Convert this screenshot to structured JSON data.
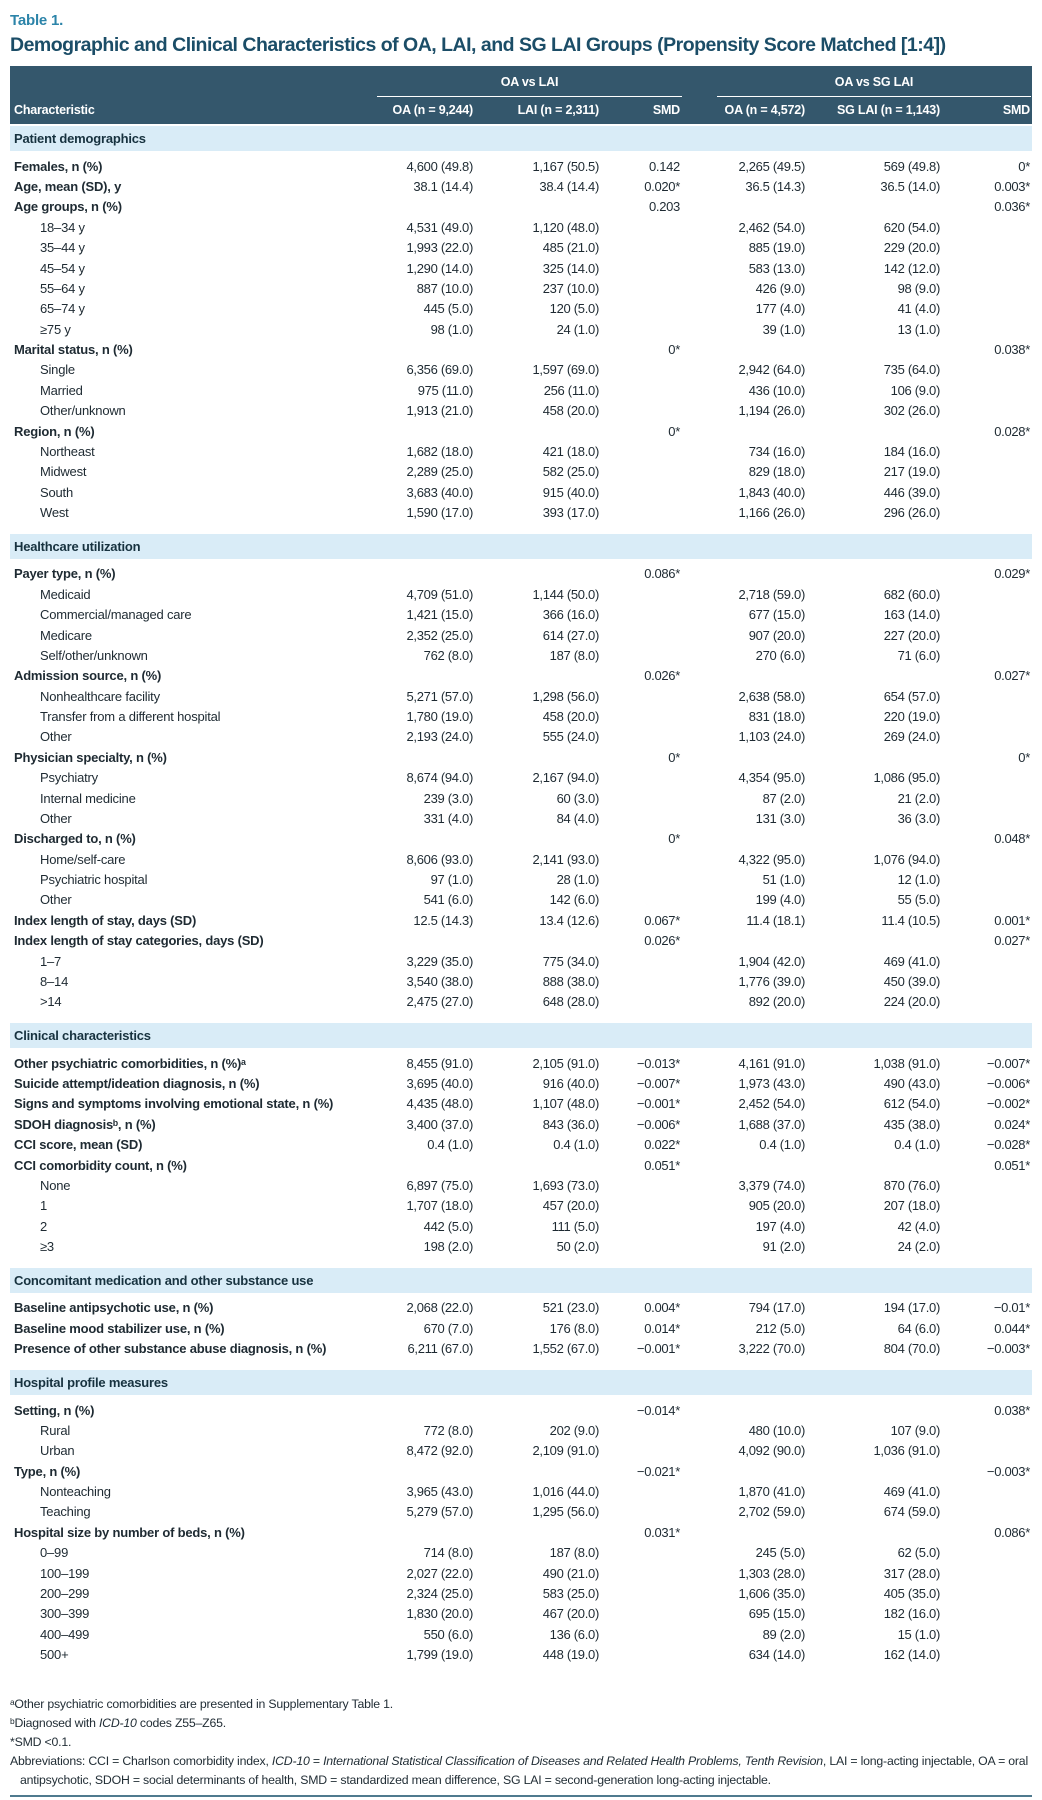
{
  "table_label": "Table 1.",
  "title": "Demographic and Clinical Characteristics of OA, LAI, and SG LAI Groups (Propensity Score Matched [1:4])",
  "colors": {
    "header_bg": "#34576C",
    "section_band_bg": "#D9ECF7",
    "table_label_teal": "#2C84A9",
    "title_text": "#1B4D67",
    "bottom_rule": "#4F7A8E"
  },
  "header": {
    "characteristic": "Characteristic",
    "groups": [
      "OA vs LAI",
      "OA vs SG LAI"
    ],
    "columns": [
      "OA (n = 9,244)",
      "LAI (n = 2,311)",
      "SMD",
      "OA (n = 4,572)",
      "SG LAI (n = 1,143)",
      "SMD"
    ]
  },
  "sections": [
    {
      "label": "Patient demographics",
      "rows": [
        {
          "label": "Females, n (%)",
          "indent": false,
          "values": [
            "4,600 (49.8)",
            "1,167 (50.5)",
            "0.142",
            "2,265 (49.5)",
            "569 (49.8)",
            "0*"
          ]
        },
        {
          "label": "Age, mean (SD), y",
          "indent": false,
          "values": [
            "38.1 (14.4)",
            "38.4 (14.4)",
            "0.020*",
            "36.5 (14.3)",
            "36.5 (14.0)",
            "0.003*"
          ]
        },
        {
          "label": "Age groups, n (%)",
          "indent": false,
          "values": [
            "",
            "",
            "0.203",
            "",
            "",
            "0.036*"
          ]
        },
        {
          "label": "18–34 y",
          "indent": true,
          "values": [
            "4,531 (49.0)",
            "1,120 (48.0)",
            "",
            "2,462 (54.0)",
            "620 (54.0)",
            ""
          ]
        },
        {
          "label": "35–44 y",
          "indent": true,
          "values": [
            "1,993 (22.0)",
            "485 (21.0)",
            "",
            "885 (19.0)",
            "229 (20.0)",
            ""
          ]
        },
        {
          "label": "45–54 y",
          "indent": true,
          "values": [
            "1,290 (14.0)",
            "325 (14.0)",
            "",
            "583 (13.0)",
            "142 (12.0)",
            ""
          ]
        },
        {
          "label": "55–64 y",
          "indent": true,
          "values": [
            "887 (10.0)",
            "237 (10.0)",
            "",
            "426 (9.0)",
            "98 (9.0)",
            ""
          ]
        },
        {
          "label": "65–74 y",
          "indent": true,
          "values": [
            "445 (5.0)",
            "120 (5.0)",
            "",
            "177 (4.0)",
            "41 (4.0)",
            ""
          ]
        },
        {
          "label": "≥75 y",
          "indent": true,
          "values": [
            "98 (1.0)",
            "24 (1.0)",
            "",
            "39 (1.0)",
            "13 (1.0)",
            ""
          ]
        },
        {
          "label": "Marital status, n (%)",
          "indent": false,
          "values": [
            "",
            "",
            "0*",
            "",
            "",
            "0.038*"
          ]
        },
        {
          "label": "Single",
          "indent": true,
          "values": [
            "6,356 (69.0)",
            "1,597 (69.0)",
            "",
            "2,942 (64.0)",
            "735 (64.0)",
            ""
          ]
        },
        {
          "label": "Married",
          "indent": true,
          "values": [
            "975 (11.0)",
            "256 (11.0)",
            "",
            "436 (10.0)",
            "106 (9.0)",
            ""
          ]
        },
        {
          "label": "Other/unknown",
          "indent": true,
          "values": [
            "1,913 (21.0)",
            "458 (20.0)",
            "",
            "1,194 (26.0)",
            "302 (26.0)",
            ""
          ]
        },
        {
          "label": "Region, n (%)",
          "indent": false,
          "values": [
            "",
            "",
            "0*",
            "",
            "",
            "0.028*"
          ]
        },
        {
          "label": "Northeast",
          "indent": true,
          "values": [
            "1,682 (18.0)",
            "421 (18.0)",
            "",
            "734 (16.0)",
            "184 (16.0)",
            ""
          ]
        },
        {
          "label": "Midwest",
          "indent": true,
          "values": [
            "2,289 (25.0)",
            "582 (25.0)",
            "",
            "829 (18.0)",
            "217 (19.0)",
            ""
          ]
        },
        {
          "label": "South",
          "indent": true,
          "values": [
            "3,683 (40.0)",
            "915 (40.0)",
            "",
            "1,843 (40.0)",
            "446 (39.0)",
            ""
          ]
        },
        {
          "label": "West",
          "indent": true,
          "values": [
            "1,590 (17.0)",
            "393 (17.0)",
            "",
            "1,166 (26.0)",
            "296 (26.0)",
            ""
          ]
        }
      ]
    },
    {
      "label": "Healthcare utilization",
      "rows": [
        {
          "label": "Payer type, n (%)",
          "indent": false,
          "values": [
            "",
            "",
            "0.086*",
            "",
            "",
            "0.029*"
          ]
        },
        {
          "label": "Medicaid",
          "indent": true,
          "values": [
            "4,709 (51.0)",
            "1,144 (50.0)",
            "",
            "2,718 (59.0)",
            "682 (60.0)",
            ""
          ]
        },
        {
          "label": "Commercial/managed care",
          "indent": true,
          "values": [
            "1,421 (15.0)",
            "366 (16.0)",
            "",
            "677 (15.0)",
            "163 (14.0)",
            ""
          ]
        },
        {
          "label": "Medicare",
          "indent": true,
          "values": [
            "2,352 (25.0)",
            "614 (27.0)",
            "",
            "907 (20.0)",
            "227 (20.0)",
            ""
          ]
        },
        {
          "label": "Self/other/unknown",
          "indent": true,
          "values": [
            "762 (8.0)",
            "187 (8.0)",
            "",
            "270 (6.0)",
            "71 (6.0)",
            ""
          ]
        },
        {
          "label": "Admission source, n (%)",
          "indent": false,
          "values": [
            "",
            "",
            "0.026*",
            "",
            "",
            "0.027*"
          ]
        },
        {
          "label": "Nonhealthcare facility",
          "indent": true,
          "values": [
            "5,271 (57.0)",
            "1,298 (56.0)",
            "",
            "2,638 (58.0)",
            "654 (57.0)",
            ""
          ]
        },
        {
          "label": "Transfer from a different hospital",
          "indent": true,
          "values": [
            "1,780 (19.0)",
            "458 (20.0)",
            "",
            "831 (18.0)",
            "220 (19.0)",
            ""
          ]
        },
        {
          "label": "Other",
          "indent": true,
          "values": [
            "2,193 (24.0)",
            "555 (24.0)",
            "",
            "1,103 (24.0)",
            "269 (24.0)",
            ""
          ]
        },
        {
          "label": "Physician specialty, n (%)",
          "indent": false,
          "values": [
            "",
            "",
            "0*",
            "",
            "",
            "0*"
          ]
        },
        {
          "label": "Psychiatry",
          "indent": true,
          "values": [
            "8,674 (94.0)",
            "2,167 (94.0)",
            "",
            "4,354 (95.0)",
            "1,086 (95.0)",
            ""
          ]
        },
        {
          "label": "Internal medicine",
          "indent": true,
          "values": [
            "239 (3.0)",
            "60 (3.0)",
            "",
            "87 (2.0)",
            "21 (2.0)",
            ""
          ]
        },
        {
          "label": "Other",
          "indent": true,
          "values": [
            "331 (4.0)",
            "84 (4.0)",
            "",
            "131 (3.0)",
            "36 (3.0)",
            ""
          ]
        },
        {
          "label": "Discharged to, n (%)",
          "indent": false,
          "values": [
            "",
            "",
            "0*",
            "",
            "",
            "0.048*"
          ]
        },
        {
          "label": "Home/self-care",
          "indent": true,
          "values": [
            "8,606 (93.0)",
            "2,141 (93.0)",
            "",
            "4,322 (95.0)",
            "1,076 (94.0)",
            ""
          ]
        },
        {
          "label": "Psychiatric hospital",
          "indent": true,
          "values": [
            "97 (1.0)",
            "28 (1.0)",
            "",
            "51 (1.0)",
            "12 (1.0)",
            ""
          ]
        },
        {
          "label": "Other",
          "indent": true,
          "values": [
            "541 (6.0)",
            "142 (6.0)",
            "",
            "199 (4.0)",
            "55 (5.0)",
            ""
          ]
        },
        {
          "label": "Index length of stay, days (SD)",
          "indent": false,
          "values": [
            "12.5 (14.3)",
            "13.4 (12.6)",
            "0.067*",
            "11.4 (18.1)",
            "11.4 (10.5)",
            "0.001*"
          ]
        },
        {
          "label": "Index length of stay categories, days (SD)",
          "indent": false,
          "values": [
            "",
            "",
            "0.026*",
            "",
            "",
            "0.027*"
          ]
        },
        {
          "label": "1–7",
          "indent": true,
          "values": [
            "3,229 (35.0)",
            "775 (34.0)",
            "",
            "1,904 (42.0)",
            "469 (41.0)",
            ""
          ]
        },
        {
          "label": "8–14",
          "indent": true,
          "values": [
            "3,540 (38.0)",
            "888 (38.0)",
            "",
            "1,776 (39.0)",
            "450 (39.0)",
            ""
          ]
        },
        {
          "label": ">14",
          "indent": true,
          "values": [
            "2,475 (27.0)",
            "648 (28.0)",
            "",
            "892 (20.0)",
            "224 (20.0)",
            ""
          ]
        }
      ]
    },
    {
      "label": "Clinical characteristics",
      "rows": [
        {
          "label": "Other psychiatric comorbidities, n (%)ᵃ",
          "indent": false,
          "values": [
            "8,455 (91.0)",
            "2,105 (91.0)",
            "−0.013*",
            "4,161 (91.0)",
            "1,038 (91.0)",
            "−0.007*"
          ]
        },
        {
          "label": "Suicide attempt/ideation diagnosis, n (%)",
          "indent": false,
          "values": [
            "3,695 (40.0)",
            "916 (40.0)",
            "−0.007*",
            "1,973 (43.0)",
            "490 (43.0)",
            "−0.006*"
          ]
        },
        {
          "label": "Signs and symptoms involving emotional state, n (%)",
          "indent": false,
          "values": [
            "4,435 (48.0)",
            "1,107 (48.0)",
            "−0.001*",
            "2,452 (54.0)",
            "612 (54.0)",
            "−0.002*"
          ]
        },
        {
          "label": "SDOH diagnosisᵇ, n (%)",
          "indent": false,
          "values": [
            "3,400 (37.0)",
            "843 (36.0)",
            "−0.006*",
            "1,688 (37.0)",
            "435 (38.0)",
            "0.024*"
          ]
        },
        {
          "label": "CCI score, mean (SD)",
          "indent": false,
          "values": [
            "0.4 (1.0)",
            "0.4 (1.0)",
            "0.022*",
            "0.4 (1.0)",
            "0.4 (1.0)",
            "−0.028*"
          ]
        },
        {
          "label": "CCI comorbidity count, n (%)",
          "indent": false,
          "values": [
            "",
            "",
            "0.051*",
            "",
            "",
            "0.051*"
          ]
        },
        {
          "label": "None",
          "indent": true,
          "values": [
            "6,897 (75.0)",
            "1,693 (73.0)",
            "",
            "3,379 (74.0)",
            "870 (76.0)",
            ""
          ]
        },
        {
          "label": "1",
          "indent": true,
          "values": [
            "1,707 (18.0)",
            "457 (20.0)",
            "",
            "905 (20.0)",
            "207 (18.0)",
            ""
          ]
        },
        {
          "label": "2",
          "indent": true,
          "values": [
            "442 (5.0)",
            "111 (5.0)",
            "",
            "197 (4.0)",
            "42 (4.0)",
            ""
          ]
        },
        {
          "label": "≥3",
          "indent": true,
          "values": [
            "198 (2.0)",
            "50 (2.0)",
            "",
            "91 (2.0)",
            "24 (2.0)",
            ""
          ]
        }
      ]
    },
    {
      "label": "Concomitant medication and other substance use",
      "rows": [
        {
          "label": "Baseline antipsychotic use, n (%)",
          "indent": false,
          "values": [
            "2,068 (22.0)",
            "521 (23.0)",
            "0.004*",
            "794 (17.0)",
            "194 (17.0)",
            "−0.01*"
          ]
        },
        {
          "label": "Baseline mood stabilizer use, n (%)",
          "indent": false,
          "values": [
            "670 (7.0)",
            "176 (8.0)",
            "0.014*",
            "212 (5.0)",
            "64 (6.0)",
            "0.044*"
          ]
        },
        {
          "label": "Presence of other substance abuse diagnosis, n (%)",
          "indent": false,
          "values": [
            "6,211 (67.0)",
            "1,552 (67.0)",
            "−0.001*",
            "3,222 (70.0)",
            "804 (70.0)",
            "−0.003*"
          ]
        }
      ]
    },
    {
      "label": "Hospital profile measures",
      "rows": [
        {
          "label": "Setting, n (%)",
          "indent": false,
          "values": [
            "",
            "",
            "−0.014*",
            "",
            "",
            "0.038*"
          ]
        },
        {
          "label": "Rural",
          "indent": true,
          "values": [
            "772 (8.0)",
            "202 (9.0)",
            "",
            "480 (10.0)",
            "107 (9.0)",
            ""
          ]
        },
        {
          "label": "Urban",
          "indent": true,
          "values": [
            "8,472 (92.0)",
            "2,109 (91.0)",
            "",
            "4,092 (90.0)",
            "1,036 (91.0)",
            ""
          ]
        },
        {
          "label": "Type, n (%)",
          "indent": false,
          "values": [
            "",
            "",
            "−0.021*",
            "",
            "",
            "−0.003*"
          ]
        },
        {
          "label": "Nonteaching",
          "indent": true,
          "values": [
            "3,965 (43.0)",
            "1,016 (44.0)",
            "",
            "1,870 (41.0)",
            "469 (41.0)",
            ""
          ]
        },
        {
          "label": "Teaching",
          "indent": true,
          "values": [
            "5,279 (57.0)",
            "1,295 (56.0)",
            "",
            "2,702 (59.0)",
            "674 (59.0)",
            ""
          ]
        },
        {
          "label": "Hospital size by number of beds, n (%)",
          "indent": false,
          "values": [
            "",
            "",
            "0.031*",
            "",
            "",
            "0.086*"
          ]
        },
        {
          "label": "0–99",
          "indent": true,
          "values": [
            "714 (8.0)",
            "187 (8.0)",
            "",
            "245 (5.0)",
            "62 (5.0)",
            ""
          ]
        },
        {
          "label": "100–199",
          "indent": true,
          "values": [
            "2,027 (22.0)",
            "490 (21.0)",
            "",
            "1,303 (28.0)",
            "317 (28.0)",
            ""
          ]
        },
        {
          "label": "200–299",
          "indent": true,
          "values": [
            "2,324 (25.0)",
            "583 (25.0)",
            "",
            "1,606 (35.0)",
            "405 (35.0)",
            ""
          ]
        },
        {
          "label": "300–399",
          "indent": true,
          "values": [
            "1,830 (20.0)",
            "467 (20.0)",
            "",
            "695 (15.0)",
            "182 (16.0)",
            ""
          ]
        },
        {
          "label": "400–499",
          "indent": true,
          "values": [
            "550 (6.0)",
            "136 (6.0)",
            "",
            "89 (2.0)",
            "15 (1.0)",
            ""
          ]
        },
        {
          "label": "500+",
          "indent": true,
          "values": [
            "1,799 (19.0)",
            "448 (19.0)",
            "",
            "634 (14.0)",
            "162 (14.0)",
            ""
          ]
        }
      ]
    }
  ],
  "footnotes": {
    "a": "ᵃOther psychiatric comorbidities are presented in Supplementary Table 1.",
    "b_parts": [
      "ᵇDiagnosed with ",
      "ICD-10",
      " codes Z55–Z65."
    ],
    "star": "*SMD <0.1.",
    "abbrev_parts": [
      "Abbreviations: CCI = Charlson comorbidity index, ",
      "ICD-10",
      " = ",
      "International Statistical Classification of Diseases and Related Health Problems, Tenth Revision",
      ", LAI = long-acting injectable, OA = oral antipsychotic, SDOH = social determinants of health, SMD = standardized mean difference, SG LAI = second-generation long-acting injectable."
    ]
  }
}
